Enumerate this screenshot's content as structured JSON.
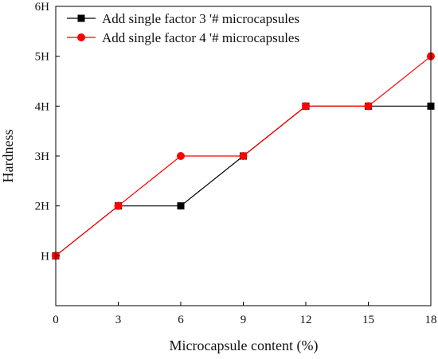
{
  "chart_data": {
    "type": "line",
    "xlabel": "Microcapsule content (%)",
    "ylabel": "Hardness",
    "x": [
      0,
      3,
      6,
      9,
      12,
      15,
      18
    ],
    "xlim": [
      0,
      18
    ],
    "ylim": [
      0,
      6
    ],
    "x_ticks": [
      0,
      3,
      6,
      9,
      12,
      15,
      18
    ],
    "y_ticks": [
      {
        "value": 1,
        "label": "H"
      },
      {
        "value": 2,
        "label": "2H"
      },
      {
        "value": 3,
        "label": "3H"
      },
      {
        "value": 4,
        "label": "4H"
      },
      {
        "value": 5,
        "label": "5H"
      },
      {
        "value": 6,
        "label": "6H"
      }
    ],
    "series": [
      {
        "name": "Add single factor 3 '# microcapsules",
        "values": [
          1,
          2,
          2,
          3,
          4,
          4,
          4
        ],
        "color": "#000000",
        "marker": "square"
      },
      {
        "name": "Add single factor 4 '# microcapsules",
        "values": [
          1,
          2,
          3,
          3,
          4,
          4,
          5
        ],
        "color": "#ff0000",
        "marker": "circle"
      }
    ],
    "legend_position": "top-left",
    "grid": false
  }
}
